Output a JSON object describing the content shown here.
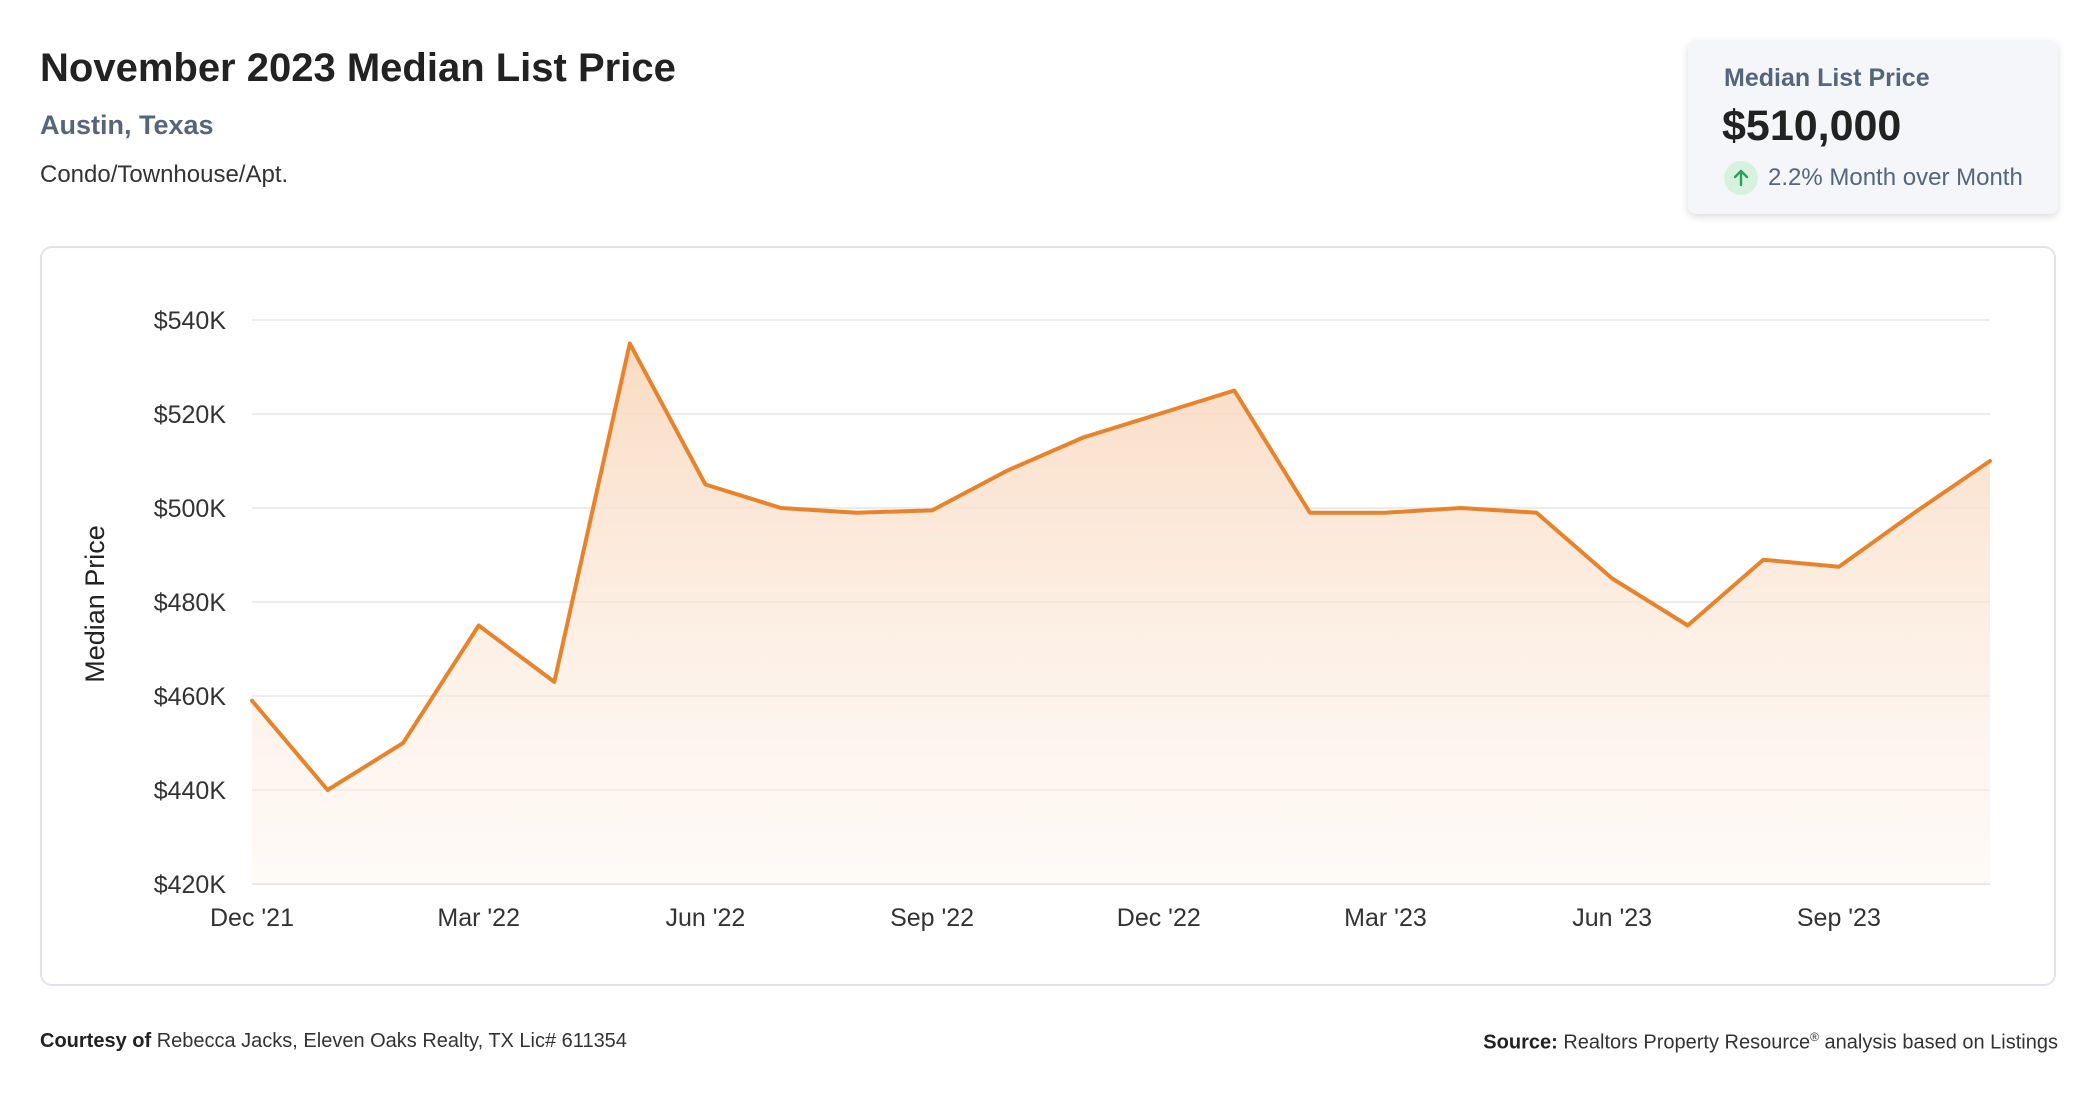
{
  "header": {
    "title": "November 2023 Median List Price",
    "location": "Austin, Texas",
    "property_type": "Condo/Townhouse/Apt."
  },
  "stat_card": {
    "label": "Median List Price",
    "value": "$510,000",
    "change": "2.2% Month over Month",
    "change_direction": "up",
    "change_icon": "arrow-up-icon",
    "change_color": "#2e9e5b"
  },
  "colors": {
    "line": "#e8832c",
    "area_top": "#f9d9bf",
    "grid": "#e6e6e6",
    "axis_text": "#333333"
  },
  "chart_data": {
    "type": "area",
    "ylabel": "Median Price",
    "xlabel": "",
    "ylim": [
      420000,
      540000
    ],
    "yticks": [
      420000,
      440000,
      460000,
      480000,
      500000,
      520000,
      540000
    ],
    "ytick_labels": [
      "$420K",
      "$440K",
      "$460K",
      "$480K",
      "$500K",
      "$520K",
      "$540K"
    ],
    "xtick_labels": [
      "Dec '21",
      "Mar '22",
      "Jun '22",
      "Sep '22",
      "Dec '22",
      "Mar '23",
      "Jun '23",
      "Sep '23"
    ],
    "xtick_indices": [
      0,
      3,
      6,
      9,
      12,
      15,
      18,
      21
    ],
    "x": [
      "2021-12",
      "2022-01",
      "2022-02",
      "2022-03",
      "2022-04",
      "2022-05",
      "2022-06",
      "2022-07",
      "2022-08",
      "2022-09",
      "2022-10",
      "2022-11",
      "2022-12",
      "2023-01",
      "2023-02",
      "2023-03",
      "2023-04",
      "2023-05",
      "2023-06",
      "2023-07",
      "2023-08",
      "2023-09",
      "2023-10",
      "2023-11"
    ],
    "values": [
      459000,
      440000,
      450000,
      475000,
      463000,
      535000,
      505000,
      500000,
      499000,
      499500,
      508000,
      515000,
      520000,
      525000,
      499000,
      499000,
      500000,
      499000,
      485000,
      475000,
      489000,
      487500,
      499000,
      510000
    ],
    "grid": true,
    "legend": "none"
  },
  "footer": {
    "courtesy_label": "Courtesy of",
    "courtesy_text": "Rebecca Jacks, Eleven Oaks Realty, TX Lic# 611354",
    "source_label": "Source:",
    "source_text": "Realtors Property Resource",
    "source_mark": "®",
    "source_suffix": "analysis based on Listings"
  }
}
